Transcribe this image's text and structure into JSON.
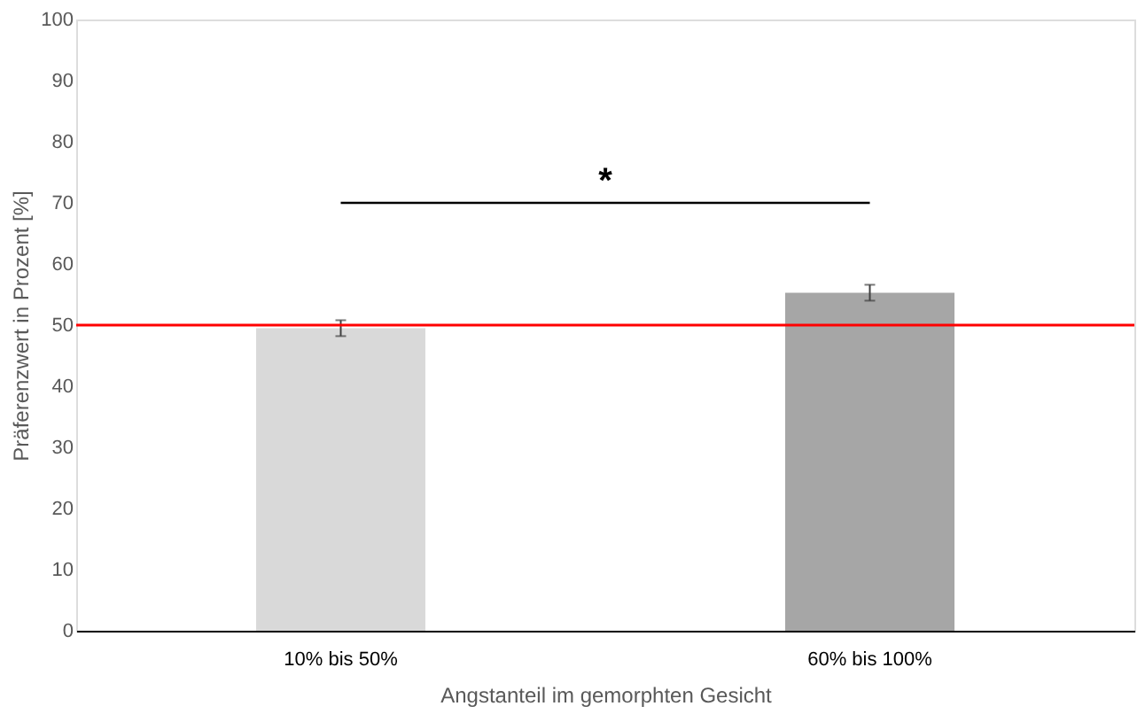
{
  "chart_data": {
    "type": "bar",
    "xlabel": "Angstanteil im gemorphten Gesicht",
    "ylabel": "Präferenzwert in Prozent [%]",
    "categories": [
      "10% bis 50%",
      "60% bis 100%"
    ],
    "values": [
      49.5,
      55.3
    ],
    "colors": [
      "#d9d9d9",
      "#a6a6a6"
    ],
    "errors": [
      1.3,
      1.3
    ],
    "ylim": [
      0,
      100
    ],
    "yticks": [
      0,
      10,
      20,
      30,
      40,
      50,
      60,
      70,
      80,
      90,
      100
    ],
    "grid": false,
    "legend": false,
    "ref_lines": [
      {
        "axis": "y",
        "value": 50,
        "color": "#ff0000"
      }
    ],
    "annotations": [
      "*"
    ]
  }
}
